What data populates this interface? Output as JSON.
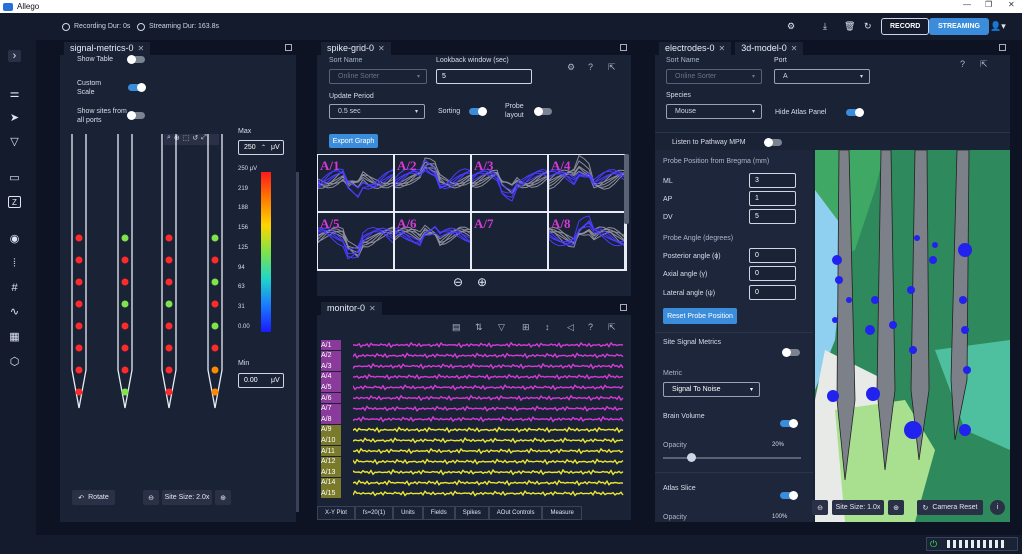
{
  "app": {
    "title": "Allego"
  },
  "header": {
    "recording": "Recording Dur: 0s",
    "streaming": "Streaming Dur: 163.8s",
    "record_label": "RECORD",
    "streaming_label": "STREAMING"
  },
  "signal_metrics": {
    "tab": "signal-metrics-0",
    "show_table": "Show Table",
    "custom_scale": "Custom Scale",
    "show_sites": "Show sites from all ports",
    "max_label": "Max",
    "max_value": "250",
    "unit": "μV",
    "min_label": "Min",
    "min_value": "0.00",
    "colorbar_ticks": [
      "250 μV",
      "219",
      "188",
      "156",
      "125",
      "94",
      "63",
      "31",
      "0.00"
    ],
    "rotate": "Rotate",
    "site_size": "Site Size: 2.0x"
  },
  "spike_grid": {
    "tab": "spike-grid-0",
    "sort_name_label": "Sort Name",
    "sort_name_value": "Online Sorter",
    "lookback_label": "Lookback window (sec)",
    "lookback_value": "5",
    "update_label": "Update Period",
    "update_value": "0.5 sec",
    "sorting": "Sorting",
    "probe_layout": "Probe layout",
    "export": "Export Graph",
    "cells": [
      "A/1",
      "A/2",
      "A/3",
      "A/4",
      "A/5",
      "A/6",
      "A/7",
      "A/8"
    ]
  },
  "monitor": {
    "tab": "monitor-0",
    "channels": [
      "A/1",
      "A/2",
      "A/3",
      "A/4",
      "A/5",
      "A/6",
      "A/7",
      "A/8",
      "A/9",
      "A/10",
      "A/11",
      "A/12",
      "A/13",
      "A/14",
      "A/15"
    ],
    "bottom_tabs": [
      "X-Y Plot",
      "fs=20(1)",
      "Units",
      "Fields",
      "Spikes",
      "AOut Controls",
      "Measure"
    ]
  },
  "electrodes": {
    "tab1": "electrodes-0",
    "tab2": "3d-model-0",
    "sort_name_label": "Sort Name",
    "sort_name_value": "Online Sorter",
    "port_label": "Port",
    "port_value": "A",
    "species_label": "Species",
    "species_value": "Mouse",
    "hide_atlas": "Hide Atlas Panel",
    "listen": "Listen to Pathway MPM",
    "probe_pos": "Probe Position from Bregma (mm)",
    "ml": "ML",
    "ml_value": "3",
    "ap": "AP",
    "ap_value": "1",
    "dv": "DV",
    "dv_value": "5",
    "probe_angle": "Probe Angle (degrees)",
    "posterior": "Posterior angle (ϕ)",
    "posterior_value": "0",
    "axial": "Axial angle (γ)",
    "axial_value": "0",
    "lateral": "Lateral angle (ψ)",
    "lateral_value": "0",
    "reset": "Reset Probe Position",
    "site_signal": "Site Signal Metrics",
    "metric": "Metric",
    "metric_value": "Signal To Noise",
    "brain_volume": "Brain Volume",
    "opacity": "Opacity",
    "opacity_value": "20%",
    "atlas_slice": "Atlas Slice",
    "opacity2": "Opacity",
    "opacity2_value": "100%",
    "site_size": "Site Size: 1.0x",
    "camera_reset": "Camera Reset"
  },
  "colors": {
    "accent": "#3b8ddb",
    "pink_trace": "#d63ad6",
    "yellow_trace": "#e8e830",
    "trace_blue": "#4a3cff"
  }
}
